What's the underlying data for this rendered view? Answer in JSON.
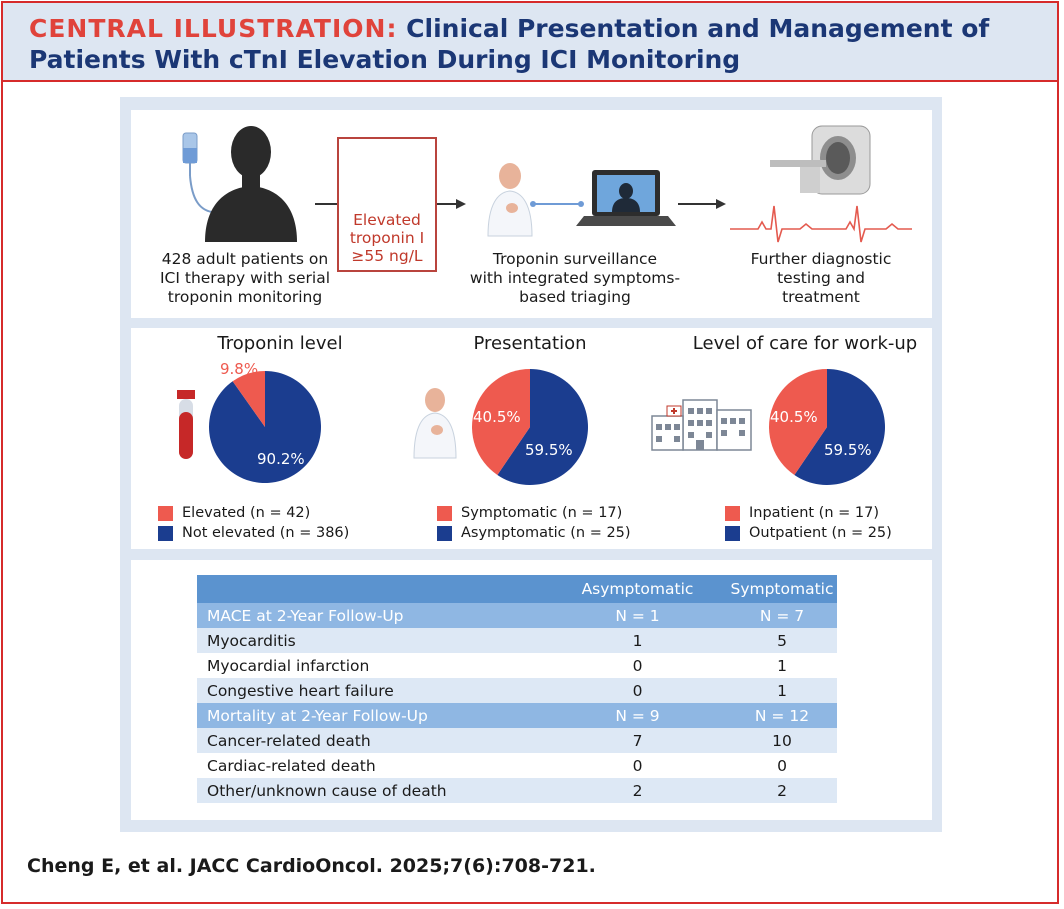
{
  "header": {
    "label": "CENTRAL ILLUSTRATION:",
    "title_line1": "Clinical Presentation and Management of",
    "title_line2": "Patients With cTnI Elevation During ICI Monitoring"
  },
  "workflow": {
    "step1": [
      "428 adult patients on",
      "ICI therapy with serial",
      "troponin monitoring"
    ],
    "step2": [
      "Elevated",
      "troponin I",
      "≥55 ng/L"
    ],
    "step3": [
      "Troponin surveillance",
      "with integrated symptoms-",
      "based triaging"
    ],
    "step4": [
      "Further diagnostic",
      "testing and",
      "treatment"
    ]
  },
  "pies": [
    {
      "title": "Troponin level",
      "slices": [
        {
          "label": "9.8%",
          "value": 9.8
        },
        {
          "label": "90.2%",
          "value": 90.2
        }
      ],
      "legend": [
        "Elevated (n = 42)",
        "Not elevated (n = 386)"
      ]
    },
    {
      "title": "Presentation",
      "slices": [
        {
          "label": "40.5%",
          "value": 40.5
        },
        {
          "label": "59.5%",
          "value": 59.5
        }
      ],
      "legend": [
        "Symptomatic (n = 17)",
        "Asymptomatic (n = 25)"
      ]
    },
    {
      "title": "Level of care for work-up",
      "slices": [
        {
          "label": "40.5%",
          "value": 40.5
        },
        {
          "label": "59.5%",
          "value": 59.5
        }
      ],
      "legend": [
        "Inpatient (n = 17)",
        "Outpatient (n = 25)"
      ]
    }
  ],
  "colors": {
    "red": "#ee5a4f",
    "blue": "#1b3d8f"
  },
  "table": {
    "columns": [
      "",
      "Asymptomatic",
      "Symptomatic"
    ],
    "rows": [
      {
        "type": "sub",
        "cells": [
          "MACE at 2-Year Follow-Up",
          "N = 1",
          "N = 7"
        ]
      },
      {
        "type": "light",
        "cells": [
          "Myocarditis",
          "1",
          "5"
        ]
      },
      {
        "type": "white",
        "cells": [
          "Myocardial infarction",
          "0",
          "1"
        ]
      },
      {
        "type": "light",
        "cells": [
          "Congestive heart failure",
          "0",
          "1"
        ]
      },
      {
        "type": "sub",
        "cells": [
          "Mortality at 2-Year Follow-Up",
          "N = 9",
          "N = 12"
        ]
      },
      {
        "type": "light",
        "cells": [
          "Cancer-related death",
          "7",
          "10"
        ]
      },
      {
        "type": "white",
        "cells": [
          "Cardiac-related death",
          "0",
          "0"
        ]
      },
      {
        "type": "light",
        "cells": [
          "Other/unknown cause of death",
          "2",
          "2"
        ]
      }
    ]
  },
  "citation": "Cheng E, et al. JACC CardioOncol. 2025;7(6):708-721."
}
